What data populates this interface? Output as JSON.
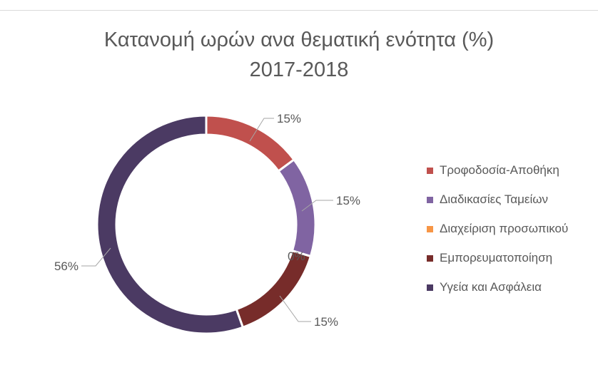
{
  "chart_data": {
    "type": "pie",
    "subtype": "doughnut",
    "title": "Κατανομή ωρών ανα θεματική ενότητα (%)",
    "subtitle": "2017-2018",
    "legend_position": "right",
    "series": [
      {
        "name": "Τροφοδοσία-Αποθήκη",
        "value": 15,
        "label": "15%",
        "color": "#C0504D"
      },
      {
        "name": "Διαδικασίες Ταμείων",
        "value": 15,
        "label": "15%",
        "color": "#8064A2"
      },
      {
        "name": "Διαχείριση προσωπικού",
        "value": 0,
        "label": "0%",
        "color": "#F79646"
      },
      {
        "name": "Εμπορευματοποίηση",
        "value": 15,
        "label": "15%",
        "color": "#772C2A"
      },
      {
        "name": "Υγεία και Ασφάλεια",
        "value": 56,
        "label": "56%",
        "color": "#4B3A63"
      }
    ]
  }
}
